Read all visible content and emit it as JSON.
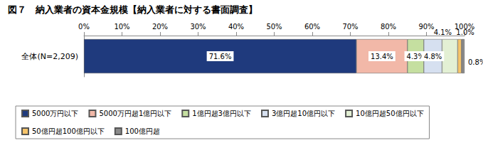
{
  "chart_data": {
    "type": "bar",
    "title": "図７　納入業者の資本金規模【納入業者に対する書面調査】",
    "orientation": "horizontal",
    "stacked": true,
    "data_labels": true,
    "grid": false,
    "legend": "bottom",
    "categories": [
      "全体(N=2,209)"
    ],
    "xlim": [
      0,
      100
    ],
    "xticks": [
      {
        "value": 0,
        "label": "0%"
      },
      {
        "value": 10,
        "label": "10%"
      },
      {
        "value": 20,
        "label": "20%"
      },
      {
        "value": 30,
        "label": "30%"
      },
      {
        "value": 40,
        "label": "40%"
      },
      {
        "value": 50,
        "label": "50%"
      },
      {
        "value": 60,
        "label": "60%"
      },
      {
        "value": 70,
        "label": "70%"
      },
      {
        "value": 80,
        "label": "80%"
      },
      {
        "value": 90,
        "label": "90%"
      },
      {
        "value": 100,
        "label": "100%"
      }
    ],
    "series": [
      {
        "name": "5000万円以下",
        "color": "#1f3a7d",
        "values": [
          71.6
        ],
        "value_labels": [
          "71.6%"
        ]
      },
      {
        "name": "5000万円超1億円以下",
        "color": "#f2b8a8",
        "values": [
          13.4
        ],
        "value_labels": [
          "13.4%"
        ]
      },
      {
        "name": "1億円超3億円以下",
        "color": "#c5dfa0",
        "values": [
          4.3
        ],
        "value_labels": [
          "4.3%"
        ]
      },
      {
        "name": "3億円超10億円以下",
        "color": "#d6e0f0",
        "values": [
          4.8
        ],
        "value_labels": [
          "4.8%"
        ]
      },
      {
        "name": "10億円超50億円以下",
        "color": "#e3f0d4",
        "values": [
          4.1
        ],
        "value_labels": [
          "4.1%"
        ]
      },
      {
        "name": "50億円超100億円以下",
        "color": "#f6c46a",
        "values": [
          1.0
        ],
        "value_labels": [
          "1.0%"
        ]
      },
      {
        "name": "100億円超",
        "color": "#8a8a8a",
        "values": [
          0.8
        ],
        "value_labels": [
          "0.8%"
        ]
      }
    ]
  }
}
